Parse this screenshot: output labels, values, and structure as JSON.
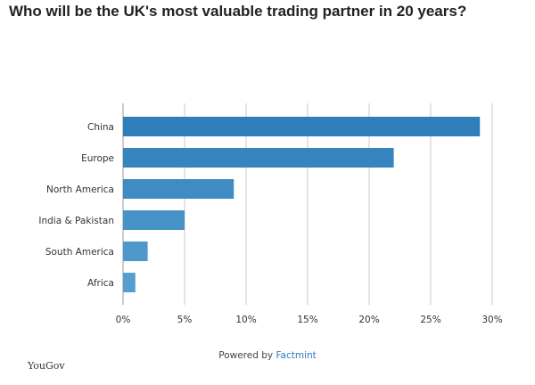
{
  "chart_data": {
    "type": "bar",
    "orientation": "horizontal",
    "title": "Who will be the UK's most valuable trading partner in 20 years?",
    "categories": [
      "China",
      "Europe",
      "North America",
      "India & Pakistan",
      "South America",
      "Africa"
    ],
    "values": [
      29,
      22,
      9,
      5,
      2,
      1
    ],
    "xlim": [
      0,
      30
    ],
    "ticks": [
      "0%",
      "5%",
      "10%",
      "15%",
      "20%",
      "25%",
      "30%"
    ],
    "grid": true,
    "colors": [
      "#2e7fba",
      "#3785be",
      "#3e8cc3",
      "#4792c7",
      "#4e98cb",
      "#559ecf"
    ]
  },
  "footer": {
    "prefix": "Powered by ",
    "brand": "Factmint"
  },
  "source": "YouGov"
}
